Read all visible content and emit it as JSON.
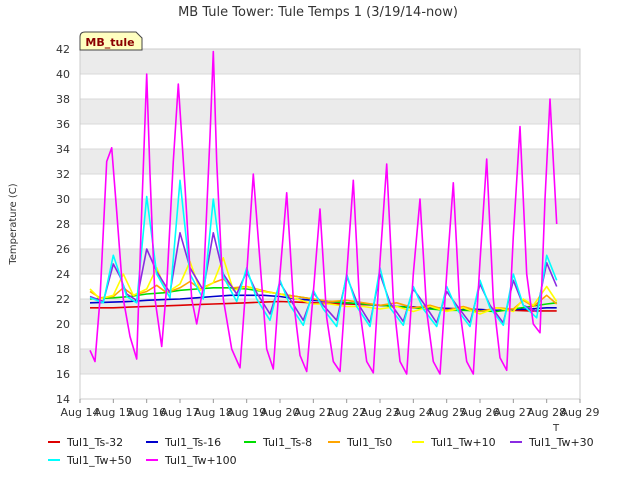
{
  "chart_data": {
    "type": "line",
    "title": "MB Tule Tower: Tule Temps 1 (3/19/14-now)",
    "ylabel": "Temperature (C)",
    "xlabel": "",
    "site_label": "MB_tule",
    "axis_corner_label": "T",
    "ylim": [
      14,
      42
    ],
    "yticks": [
      14,
      16,
      18,
      20,
      22,
      24,
      26,
      28,
      30,
      32,
      34,
      36,
      38,
      40,
      42
    ],
    "xlim": [
      14,
      29
    ],
    "xticks": [
      14,
      15,
      16,
      17,
      18,
      19,
      20,
      21,
      22,
      23,
      24,
      25,
      26,
      27,
      28,
      29
    ],
    "xtick_labels": [
      "Aug 14",
      "Aug 15",
      "Aug 16",
      "Aug 17",
      "Aug 18",
      "Aug 19",
      "Aug 20",
      "Aug 21",
      "Aug 22",
      "Aug 23",
      "Aug 24",
      "Aug 25",
      "Aug 26",
      "Aug 27",
      "Aug 28",
      "Aug 29"
    ],
    "grid": true,
    "legend_position": "bottom",
    "colors": {
      "plot_band": "#ebebeb",
      "gridline": "#d9d9d9",
      "site_box_fill": "#ffffc0"
    },
    "series": [
      {
        "name": "Tul1_Ts-32",
        "color": "#dd0000",
        "x": [
          14.3,
          15.0,
          15.5,
          16.0,
          16.5,
          17.0,
          17.5,
          18.0,
          18.5,
          19.0,
          19.5,
          20.0,
          20.5,
          21.0,
          21.5,
          22.0,
          22.5,
          23.0,
          23.5,
          24.0,
          24.5,
          25.0,
          25.5,
          26.0,
          26.5,
          27.0,
          27.5,
          28.0,
          28.3
        ],
        "y": [
          21.3,
          21.3,
          21.35,
          21.4,
          21.45,
          21.5,
          21.55,
          21.6,
          21.65,
          21.7,
          21.75,
          21.8,
          21.75,
          21.7,
          21.65,
          21.6,
          21.55,
          21.5,
          21.4,
          21.35,
          21.3,
          21.25,
          21.2,
          21.15,
          21.1,
          21.1,
          21.05,
          21.05,
          21.05
        ]
      },
      {
        "name": "Tul1_Ts-16",
        "color": "#0000cc",
        "x": [
          14.3,
          15.0,
          15.5,
          16.0,
          16.5,
          17.0,
          17.5,
          18.0,
          18.5,
          19.0,
          19.5,
          20.0,
          20.5,
          21.0,
          21.5,
          22.0,
          22.5,
          23.0,
          23.5,
          24.0,
          24.5,
          25.0,
          25.5,
          26.0,
          26.5,
          27.0,
          27.5,
          28.0,
          28.3
        ],
        "y": [
          21.7,
          21.75,
          21.8,
          21.9,
          21.95,
          22.0,
          22.1,
          22.2,
          22.3,
          22.3,
          22.3,
          22.2,
          22.0,
          21.9,
          21.8,
          21.7,
          21.6,
          21.5,
          21.4,
          21.35,
          21.3,
          21.25,
          21.2,
          21.15,
          21.1,
          21.15,
          21.2,
          21.3,
          21.3
        ]
      },
      {
        "name": "Tul1_Ts-8",
        "color": "#00dd00",
        "x": [
          14.3,
          15.0,
          15.5,
          16.0,
          16.5,
          17.0,
          17.5,
          18.0,
          18.5,
          19.0,
          19.5,
          20.0,
          20.5,
          21.0,
          21.5,
          22.0,
          22.5,
          23.0,
          23.5,
          24.0,
          24.5,
          25.0,
          25.5,
          26.0,
          26.5,
          27.0,
          27.5,
          28.0,
          28.3
        ],
        "y": [
          22.0,
          22.1,
          22.2,
          22.4,
          22.5,
          22.7,
          22.8,
          22.9,
          22.9,
          22.8,
          22.6,
          22.4,
          22.2,
          22.0,
          21.8,
          21.7,
          21.6,
          21.5,
          21.4,
          21.3,
          21.2,
          21.1,
          21.1,
          21.05,
          21.0,
          21.2,
          21.4,
          21.6,
          21.7
        ]
      },
      {
        "name": "Tul1_Ts0",
        "color": "#ffa500",
        "x": [
          14.3,
          14.6,
          15.0,
          15.3,
          15.6,
          16.0,
          16.3,
          16.6,
          17.0,
          17.3,
          17.6,
          18.0,
          18.3,
          18.6,
          19.0,
          19.3,
          19.6,
          20.0,
          20.5,
          21.0,
          21.5,
          22.0,
          22.5,
          23.0,
          23.5,
          24.0,
          24.5,
          25.0,
          25.5,
          26.0,
          26.5,
          27.0,
          27.3,
          27.6,
          28.0,
          28.3
        ],
        "y": [
          22.6,
          22.1,
          22.2,
          22.9,
          22.3,
          22.6,
          23.1,
          22.5,
          22.9,
          23.4,
          22.8,
          23.3,
          23.6,
          22.9,
          23.0,
          22.8,
          22.6,
          22.4,
          22.2,
          22.0,
          21.8,
          21.9,
          21.7,
          21.5,
          21.7,
          21.3,
          21.5,
          21.1,
          21.4,
          21.0,
          21.3,
          21.2,
          21.9,
          21.4,
          22.3,
          21.6
        ]
      },
      {
        "name": "Tul1_Tw+10",
        "color": "#ffff00",
        "x": [
          14.3,
          14.6,
          15.0,
          15.3,
          15.6,
          16.0,
          16.3,
          16.6,
          17.0,
          17.3,
          17.6,
          18.0,
          18.3,
          18.6,
          19.0,
          19.5,
          20.0,
          20.5,
          21.0,
          21.5,
          22.0,
          22.5,
          23.0,
          23.5,
          24.0,
          24.5,
          25.0,
          25.5,
          26.0,
          26.5,
          27.0,
          27.3,
          27.6,
          28.0,
          28.3
        ],
        "y": [
          22.8,
          22.0,
          22.3,
          24.0,
          22.3,
          22.8,
          24.5,
          22.5,
          23.2,
          25.0,
          22.7,
          23.3,
          25.3,
          22.7,
          23.0,
          22.6,
          22.4,
          22.0,
          21.6,
          21.6,
          21.4,
          21.4,
          21.2,
          21.4,
          21.0,
          21.4,
          21.0,
          21.3,
          20.8,
          21.3,
          21.0,
          22.0,
          21.5,
          23.0,
          21.8
        ]
      },
      {
        "name": "Tul1_Tw+30",
        "color": "#8a2be2",
        "x": [
          14.3,
          14.7,
          15.0,
          15.2,
          15.4,
          15.7,
          16.0,
          16.3,
          16.7,
          17.0,
          17.3,
          17.7,
          18.0,
          18.3,
          18.7,
          19.0,
          19.3,
          19.7,
          20.0,
          20.3,
          20.7,
          21.0,
          21.3,
          21.7,
          22.0,
          22.3,
          22.7,
          23.0,
          23.3,
          23.7,
          24.0,
          24.3,
          24.7,
          25.0,
          25.3,
          25.7,
          26.0,
          26.3,
          26.7,
          27.0,
          27.3,
          27.7,
          28.0,
          28.3
        ],
        "y": [
          22.2,
          21.8,
          24.8,
          23.8,
          22.4,
          21.9,
          26.0,
          24.2,
          22.5,
          27.3,
          24.5,
          22.7,
          27.3,
          24.0,
          22.4,
          24.2,
          22.5,
          20.8,
          23.3,
          22.0,
          20.3,
          22.5,
          21.5,
          20.3,
          23.8,
          21.8,
          20.1,
          24.0,
          21.7,
          20.2,
          22.8,
          21.7,
          20.1,
          22.6,
          21.5,
          20.1,
          23.2,
          21.5,
          20.1,
          23.5,
          21.5,
          21.0,
          24.9,
          23.0
        ]
      },
      {
        "name": "Tul1_Tw+50",
        "color": "#00ffff",
        "x": [
          14.3,
          14.7,
          15.0,
          15.2,
          15.4,
          15.7,
          16.0,
          16.3,
          16.7,
          17.0,
          17.3,
          17.7,
          18.0,
          18.3,
          18.7,
          19.0,
          19.3,
          19.7,
          20.0,
          20.3,
          20.7,
          21.0,
          21.3,
          21.7,
          22.0,
          22.3,
          22.7,
          23.0,
          23.3,
          23.7,
          24.0,
          24.3,
          24.7,
          25.0,
          25.3,
          25.7,
          26.0,
          26.3,
          26.7,
          27.0,
          27.3,
          27.7,
          28.0,
          28.3
        ],
        "y": [
          22.1,
          21.7,
          25.5,
          23.9,
          22.2,
          21.7,
          30.2,
          24.0,
          22.1,
          31.5,
          24.0,
          22.0,
          30.0,
          23.8,
          21.8,
          24.5,
          22.0,
          20.3,
          23.5,
          21.5,
          19.9,
          22.7,
          21.2,
          19.8,
          24.0,
          21.4,
          19.8,
          24.5,
          21.3,
          19.9,
          23.0,
          21.2,
          19.8,
          23.0,
          21.2,
          19.8,
          23.5,
          21.3,
          19.9,
          24.0,
          21.5,
          20.5,
          25.5,
          23.5
        ]
      },
      {
        "name": "Tul1_Tw+100",
        "color": "#ff00ff",
        "x": [
          14.3,
          14.45,
          14.6,
          14.8,
          14.95,
          15.1,
          15.3,
          15.5,
          15.7,
          15.85,
          16.0,
          16.1,
          16.25,
          16.45,
          16.6,
          16.8,
          16.95,
          17.15,
          17.35,
          17.5,
          17.7,
          17.9,
          18.0,
          18.1,
          18.3,
          18.55,
          18.8,
          19.0,
          19.2,
          19.4,
          19.6,
          19.8,
          20.0,
          20.2,
          20.4,
          20.6,
          20.8,
          21.0,
          21.2,
          21.4,
          21.6,
          21.8,
          22.0,
          22.2,
          22.4,
          22.6,
          22.8,
          23.0,
          23.2,
          23.4,
          23.6,
          23.8,
          24.0,
          24.2,
          24.4,
          24.6,
          24.8,
          25.0,
          25.2,
          25.4,
          25.6,
          25.8,
          26.0,
          26.2,
          26.4,
          26.6,
          26.8,
          27.0,
          27.2,
          27.4,
          27.6,
          27.8,
          27.95,
          28.1,
          28.3
        ],
        "y": [
          17.9,
          17.0,
          22.0,
          33.0,
          34.1,
          29.0,
          22.0,
          19.0,
          17.2,
          29.0,
          40.0,
          32.0,
          22.0,
          18.2,
          23.0,
          33.0,
          39.2,
          31.0,
          22.0,
          20.0,
          23.0,
          35.0,
          41.8,
          33.0,
          22.0,
          18.0,
          16.5,
          24.0,
          32.0,
          25.0,
          18.0,
          16.4,
          24.0,
          30.5,
          22.0,
          17.5,
          16.2,
          22.5,
          29.2,
          20.5,
          17.0,
          16.2,
          24.0,
          31.5,
          21.0,
          17.0,
          16.1,
          25.0,
          32.8,
          22.0,
          17.0,
          16.0,
          24.0,
          30.0,
          21.0,
          17.0,
          16.0,
          24.0,
          31.3,
          21.0,
          17.0,
          16.0,
          25.0,
          33.2,
          22.0,
          17.3,
          16.3,
          27.0,
          35.8,
          24.0,
          20.0,
          19.3,
          30.0,
          38.0,
          28.0
        ]
      }
    ]
  }
}
